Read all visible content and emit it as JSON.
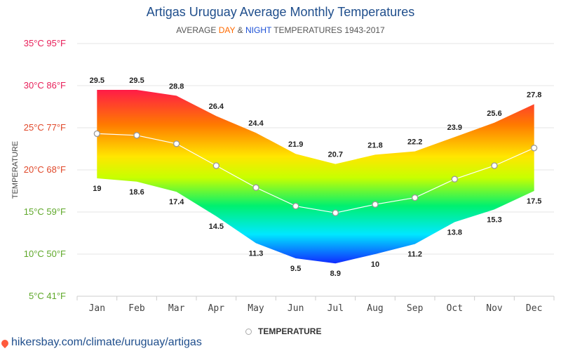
{
  "title": "Artigas Uruguay Average Monthly Temperatures",
  "subtitle": {
    "prefix": "AVERAGE ",
    "day": "DAY",
    "mid": " & ",
    "night": "NIGHT",
    "suffix": " TEMPERATURES 1943-2017"
  },
  "legend": {
    "label": "TEMPERATURE"
  },
  "footer": {
    "url": "hikersbay.com/climate/uruguay/artigas"
  },
  "colors": {
    "title": "#1f4e8c",
    "day": "#ff6a00",
    "night": "#1a4fd6",
    "mean_line": "#ffffff"
  },
  "chart_data": {
    "type": "area",
    "title": "Artigas Uruguay Average Monthly Temperatures",
    "ylabel": "TEMPERATURE",
    "ylim": [
      5,
      35
    ],
    "y_ticks": [
      {
        "value": 35,
        "label": "35°C 95°F",
        "color": "#e8205a"
      },
      {
        "value": 30,
        "label": "30°C 86°F",
        "color": "#e8205a"
      },
      {
        "value": 25,
        "label": "25°C 77°F",
        "color": "#e0482a"
      },
      {
        "value": 20,
        "label": "20°C 68°F",
        "color": "#e0482a"
      },
      {
        "value": 15,
        "label": "15°C 59°F",
        "color": "#5fa82a"
      },
      {
        "value": 10,
        "label": "10°C 50°F",
        "color": "#5fa82a"
      },
      {
        "value": 5,
        "label": "5°C 41°F",
        "color": "#5fa82a"
      }
    ],
    "categories": [
      "Jan",
      "Feb",
      "Mar",
      "Apr",
      "May",
      "Jun",
      "Jul",
      "Aug",
      "Sep",
      "Oct",
      "Nov",
      "Dec"
    ],
    "series": [
      {
        "name": "DAY",
        "values": [
          29.5,
          29.5,
          28.8,
          26.4,
          24.4,
          21.9,
          20.7,
          21.8,
          22.2,
          23.9,
          25.6,
          27.8
        ]
      },
      {
        "name": "NIGHT",
        "values": [
          19,
          18.6,
          17.4,
          14.5,
          11.3,
          9.5,
          8.9,
          10,
          11.2,
          13.8,
          15.3,
          17.5
        ]
      },
      {
        "name": "TEMPERATURE",
        "values": [
          24.3,
          24.1,
          23.1,
          20.5,
          17.9,
          15.7,
          14.9,
          15.9,
          16.7,
          18.9,
          20.5,
          22.6
        ]
      }
    ],
    "grid": true,
    "legend_position": "bottom"
  }
}
